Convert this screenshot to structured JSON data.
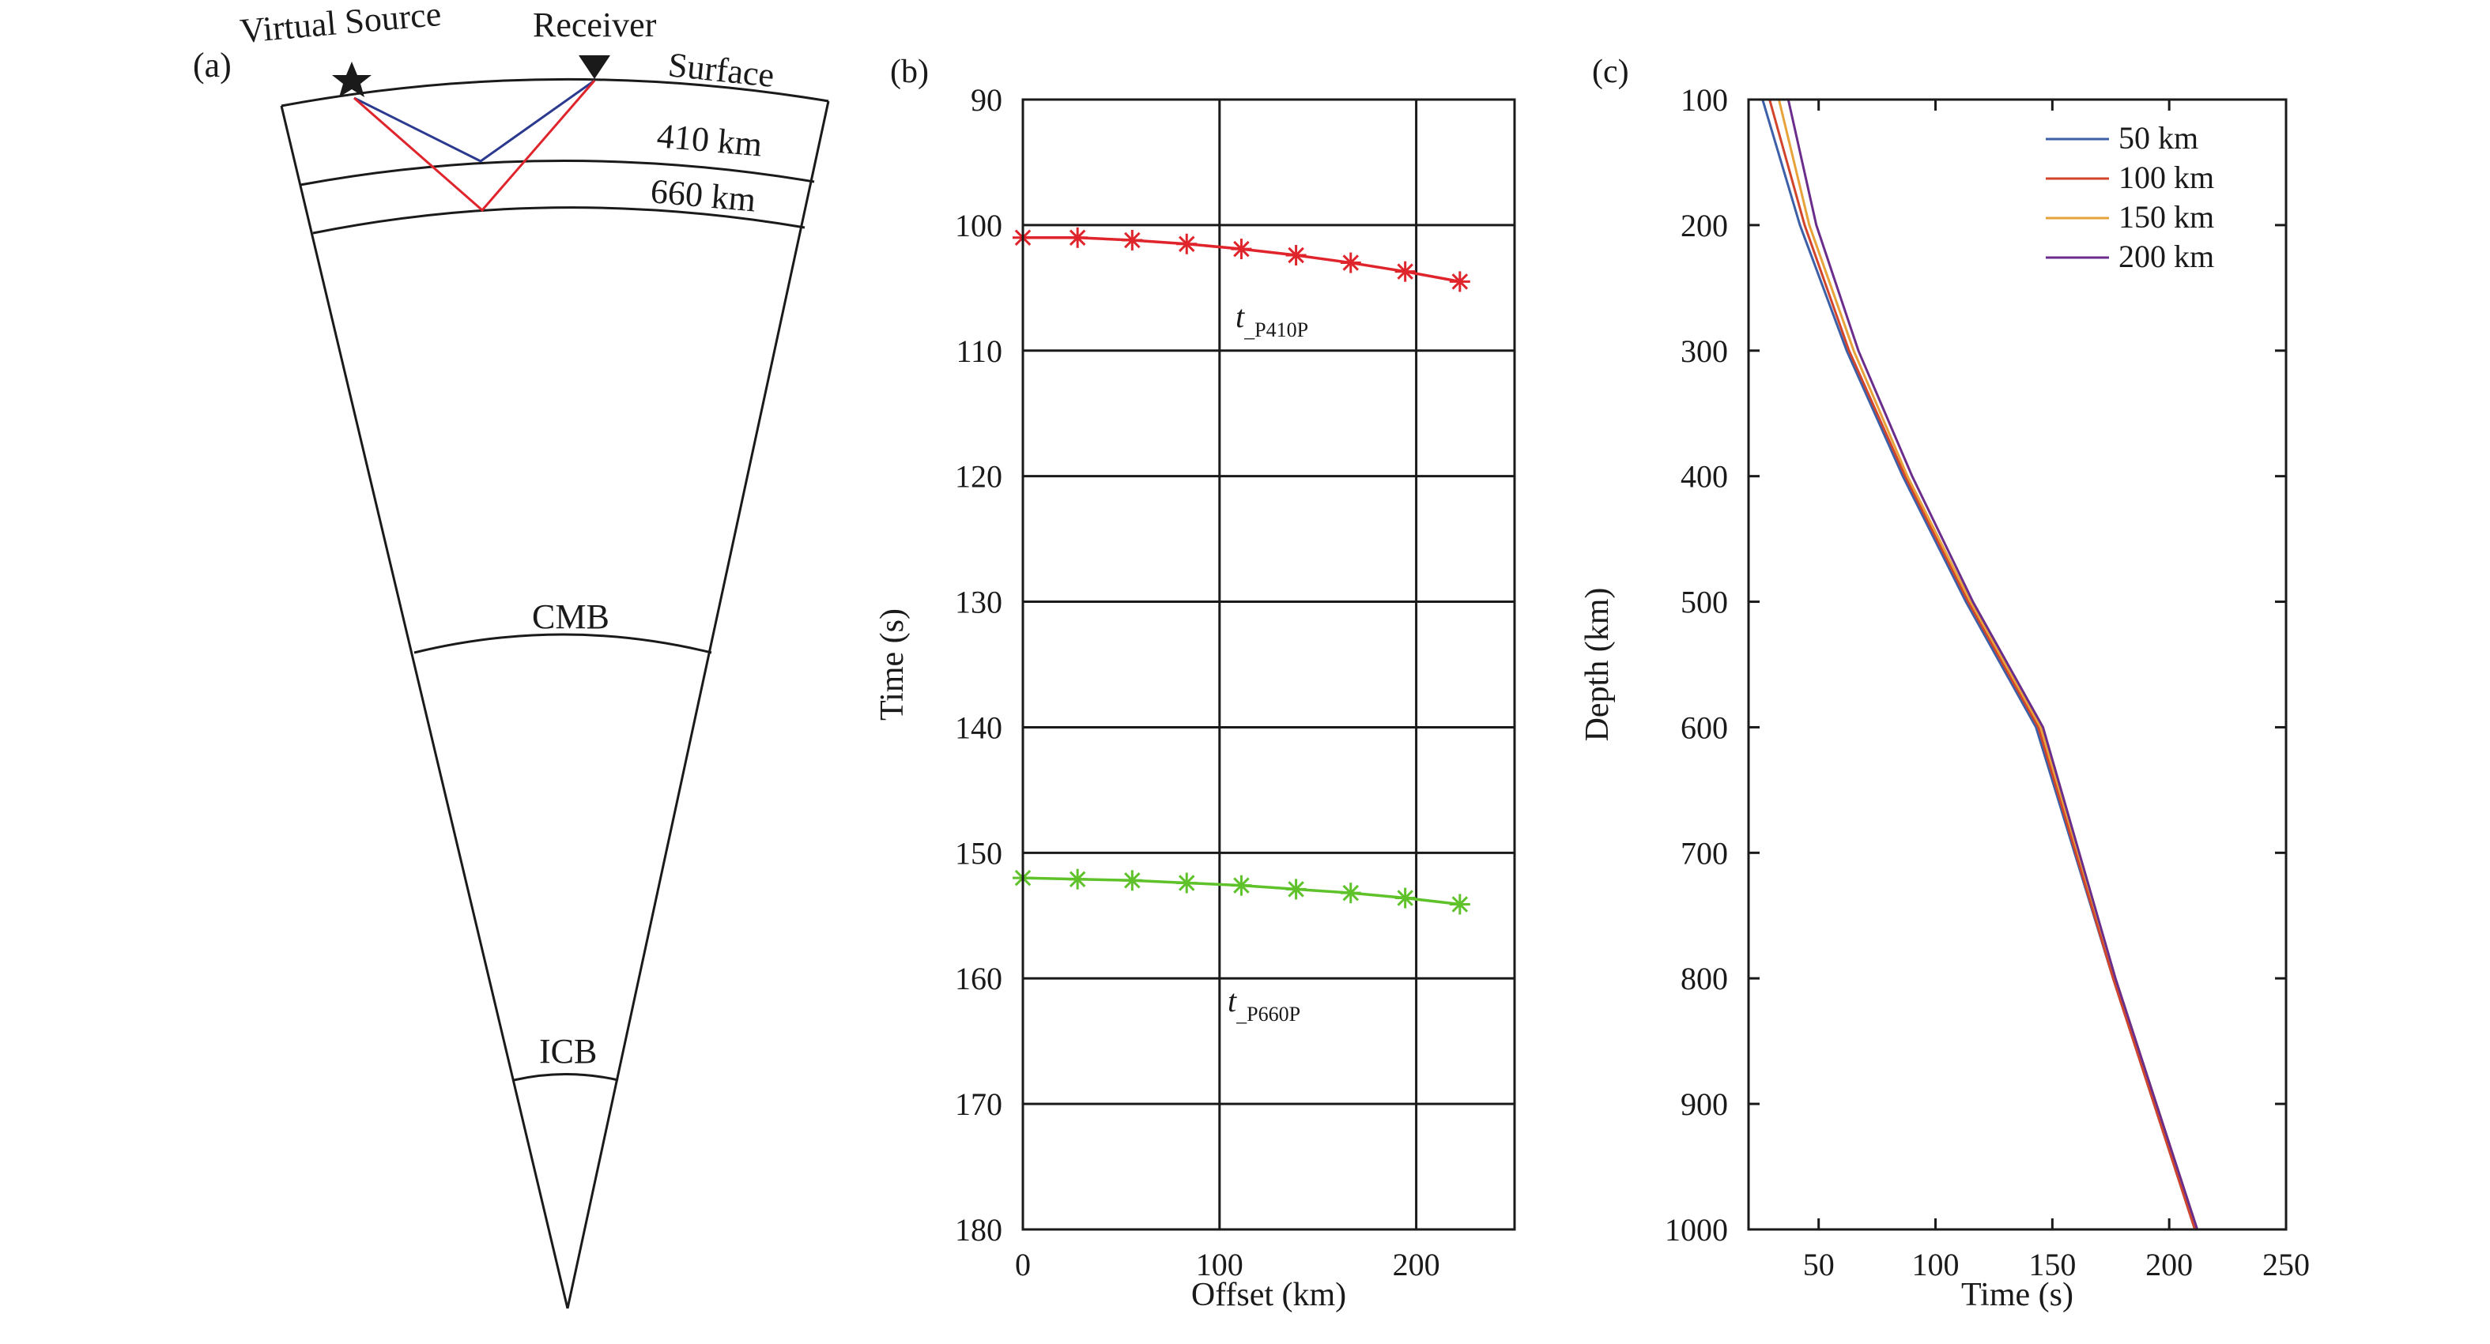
{
  "panel_a": {
    "panel_label": "(a)",
    "virtual_source_label": "Virtual Source",
    "receiver_label": "Receiver",
    "surface_label": "Surface",
    "d410_label": "410 km",
    "d660_label": "660 km",
    "cmb_label": "CMB",
    "icb_label": "ICB",
    "source_icon": "star-icon",
    "receiver_icon": "down-triangle-icon",
    "colors": {
      "ray_410": "#2b3a8f",
      "ray_660": "#e0242b",
      "outline": "#1a1a1a"
    }
  },
  "chart_data": [
    {
      "type": "line",
      "panel_label": "(b)",
      "title": "",
      "xlabel": "Offset (km)",
      "ylabel": "Time (s)",
      "xlim": [
        0,
        250
      ],
      "ylim": [
        90,
        180
      ],
      "y_inverted": true,
      "grid": true,
      "x_ticks": [
        0,
        100,
        200
      ],
      "y_ticks": [
        90,
        100,
        110,
        120,
        130,
        140,
        150,
        160,
        170,
        180
      ],
      "marker": "asterisk",
      "series": [
        {
          "annotation": "t",
          "annotation_sub": "_P410P",
          "color": "#e0242b",
          "x": [
            0,
            27.8,
            55.6,
            83.3,
            111.1,
            138.9,
            166.7,
            194.4,
            222.2
          ],
          "y": [
            101.0,
            101.0,
            101.2,
            101.5,
            101.9,
            102.4,
            103.0,
            103.7,
            104.5
          ]
        },
        {
          "annotation": "t",
          "annotation_sub": "_P660P",
          "color": "#5fc22a",
          "x": [
            0,
            27.8,
            55.6,
            83.3,
            111.1,
            138.9,
            166.7,
            194.4,
            222.2
          ],
          "y": [
            152.0,
            152.1,
            152.2,
            152.4,
            152.6,
            152.9,
            153.2,
            153.6,
            154.1
          ]
        }
      ]
    },
    {
      "type": "line",
      "panel_label": "(c)",
      "title": "",
      "xlabel": "Time (s)",
      "ylabel": "Depth (km)",
      "xlim": [
        20,
        250
      ],
      "ylim": [
        100,
        1000
      ],
      "y_inverted": true,
      "grid": false,
      "legend_position": "top-right",
      "x_ticks": [
        50,
        100,
        150,
        200,
        250
      ],
      "y_ticks": [
        100,
        200,
        300,
        400,
        500,
        600,
        700,
        800,
        900,
        1000
      ],
      "series": [
        {
          "name": "50 km",
          "color": "#3c5fa8",
          "x": [
            26,
            42,
            62,
            86,
            113,
            143,
            176,
            211
          ],
          "y": [
            100,
            200,
            300,
            400,
            500,
            600,
            800,
            1000
          ]
        },
        {
          "name": "100 km",
          "color": "#d2452b",
          "x": [
            29,
            44,
            63,
            87,
            114,
            144,
            176,
            211
          ],
          "y": [
            100,
            200,
            300,
            400,
            500,
            600,
            800,
            1000
          ]
        },
        {
          "name": "150 km",
          "color": "#e8a23a",
          "x": [
            33,
            46,
            65,
            88,
            115,
            145,
            177,
            212
          ],
          "y": [
            100,
            200,
            300,
            400,
            500,
            600,
            800,
            1000
          ]
        },
        {
          "name": "200 km",
          "color": "#6a2d8c",
          "x": [
            37,
            49,
            67,
            90,
            116,
            146,
            177,
            212
          ],
          "y": [
            100,
            200,
            300,
            400,
            500,
            600,
            800,
            1000
          ]
        }
      ]
    }
  ]
}
